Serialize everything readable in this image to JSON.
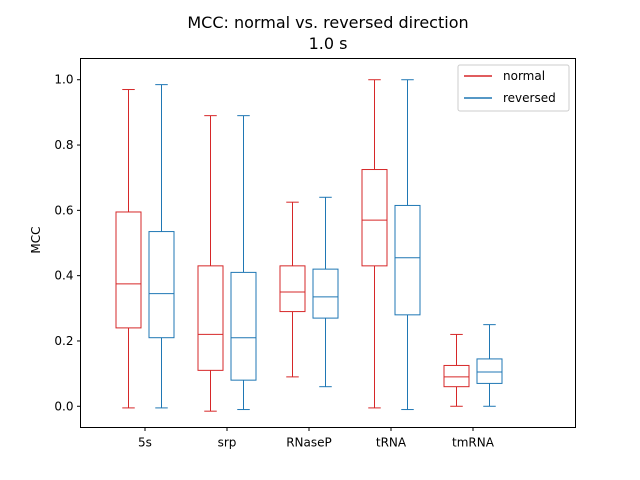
{
  "chart_data": {
    "type": "box",
    "title": "MCC: normal vs. reversed direction",
    "subtitle": "1.0 s",
    "xlabel": "",
    "ylabel": "MCC",
    "ylim": [
      -0.065,
      1.065
    ],
    "yticks": [
      "0.0",
      "0.2",
      "0.4",
      "0.6",
      "0.8",
      "1.0"
    ],
    "categories": [
      "5s",
      "srp",
      "RNaseP",
      "tRNA",
      "tmRNA"
    ],
    "grid": false,
    "legend_position": "top-right",
    "series": [
      {
        "name": "normal",
        "color": "#d62728",
        "boxes": [
          {
            "whislo": -0.005,
            "q1": 0.24,
            "med": 0.375,
            "q3": 0.595,
            "whishi": 0.97
          },
          {
            "whislo": -0.015,
            "q1": 0.11,
            "med": 0.22,
            "q3": 0.43,
            "whishi": 0.89
          },
          {
            "whislo": 0.09,
            "q1": 0.29,
            "med": 0.35,
            "q3": 0.43,
            "whishi": 0.625
          },
          {
            "whislo": -0.005,
            "q1": 0.43,
            "med": 0.57,
            "q3": 0.725,
            "whishi": 1.0
          },
          {
            "whislo": 0.0,
            "q1": 0.06,
            "med": 0.09,
            "q3": 0.125,
            "whishi": 0.22
          }
        ]
      },
      {
        "name": "reversed",
        "color": "#1f77b4",
        "boxes": [
          {
            "whislo": -0.005,
            "q1": 0.21,
            "med": 0.345,
            "q3": 0.535,
            "whishi": 0.985
          },
          {
            "whislo": -0.01,
            "q1": 0.08,
            "med": 0.21,
            "q3": 0.41,
            "whishi": 0.89
          },
          {
            "whislo": 0.06,
            "q1": 0.27,
            "med": 0.335,
            "q3": 0.42,
            "whishi": 0.64
          },
          {
            "whislo": -0.01,
            "q1": 0.28,
            "med": 0.455,
            "q3": 0.615,
            "whishi": 1.0
          },
          {
            "whislo": 0.0,
            "q1": 0.07,
            "med": 0.105,
            "q3": 0.145,
            "whishi": 0.25
          }
        ]
      }
    ]
  }
}
